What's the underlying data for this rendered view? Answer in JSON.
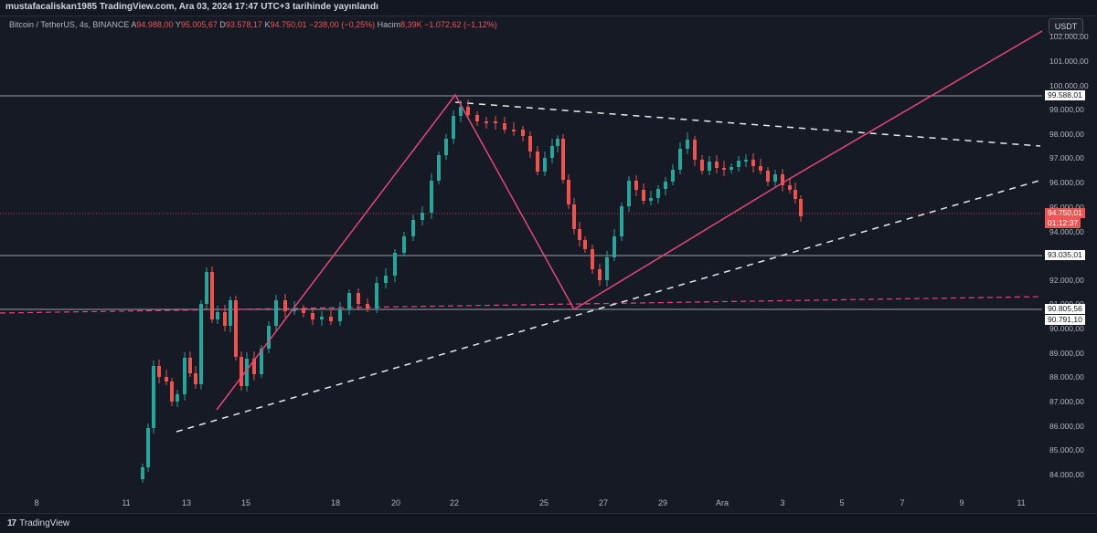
{
  "header": {
    "published_line": "mustafacaliskan1985 TradingView.com, Ara 03, 2024 17:47 UTC+3 tarihinde yayınlandı"
  },
  "legend": {
    "symbol": "Bitcoin / TetherUS, 4s, BINANCE",
    "open_key": "A",
    "open_val": "94.988,00",
    "high_key": "Y",
    "high_val": "95.005,67",
    "low_key": "D",
    "low_val": "93.578,17",
    "close_key": "K",
    "close_val": "94.750,01",
    "change_val": "−238,00 (−0,25%)",
    "volume_key": "Hacim",
    "volume_val": "8,39K",
    "volume_change": "−1.072,62 (−1,12%)"
  },
  "currency_button": "USDT",
  "price_labels": {
    "l1": "99.588,01",
    "current": "94.750,01",
    "countdown": "01:12:37",
    "l2": "93.035,01",
    "l3": "90.805,56",
    "l4": "90.791,10"
  },
  "y_axis": {
    "ticks": [
      "102.000,00",
      "101.000,00",
      "100.000,00",
      "99.000,00",
      "98.000,00",
      "97.000,00",
      "96.000,00",
      "95.000,00",
      "94.000,00",
      "92.000,00",
      "91.000,00",
      "90.000,00",
      "89.000,00",
      "88.000,00",
      "87.000,00",
      "86.000,00",
      "85.000,00",
      "84.000,00"
    ]
  },
  "x_axis": {
    "ticks": [
      "8",
      "11",
      "13",
      "15",
      "18",
      "20",
      "22",
      "25",
      "27",
      "29",
      "Ara",
      "3",
      "5",
      "7",
      "9",
      "11"
    ]
  },
  "branding": {
    "logo_text": "17",
    "name": "TradingView"
  },
  "colors": {
    "background": "#161a25",
    "bull": "#26a69a",
    "bear": "#ef5350",
    "trend_pink": "#e8457a",
    "dashed_white": "#e8e8e8",
    "current_price": "#f05454"
  }
}
